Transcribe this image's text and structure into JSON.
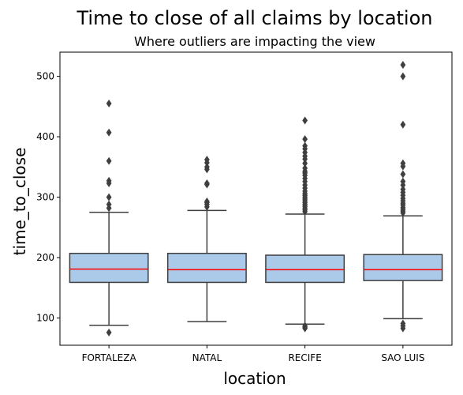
{
  "chart_data": {
    "type": "box",
    "title": "Time to close of all claims by location",
    "subtitle": "Where outliers are impacting the view",
    "xlabel": "location",
    "ylabel": "time_to_close",
    "ylim": [
      55,
      540
    ],
    "yticks": [
      100,
      200,
      300,
      400,
      500
    ],
    "grid": false,
    "colors": {
      "box_fill": "#abc9e8",
      "box_edge": "#3f3f3f",
      "median": "#ff0000"
    },
    "categories": [
      "FORTALEZA",
      "NATAL",
      "RECIFE",
      "SAO LUIS"
    ],
    "boxes": [
      {
        "category": "FORTALEZA",
        "whisker_low": 88,
        "q1": 159,
        "median": 181,
        "q3": 207,
        "whisker_high": 275,
        "outliers": [
          76,
          282,
          288,
          300,
          323,
          327,
          360,
          407,
          455
        ]
      },
      {
        "category": "NATAL",
        "whisker_low": 94,
        "q1": 159,
        "median": 180,
        "q3": 207,
        "whisker_high": 278,
        "outliers": [
          284,
          288,
          291,
          293,
          321,
          323,
          346,
          350,
          357,
          362
        ]
      },
      {
        "category": "RECIFE",
        "whisker_low": 90,
        "q1": 159,
        "median": 180,
        "q3": 204,
        "whisker_high": 272,
        "outliers": [
          83,
          85,
          87,
          276,
          279,
          282,
          285,
          288,
          291,
          294,
          297,
          300,
          303,
          306,
          310,
          315,
          320,
          326,
          331,
          336,
          340,
          343,
          348,
          356,
          363,
          368,
          374,
          380,
          385,
          396,
          427
        ]
      },
      {
        "category": "SAO LUIS",
        "whisker_low": 99,
        "q1": 162,
        "median": 180,
        "q3": 205,
        "whisker_high": 269,
        "outliers": [
          83,
          87,
          91,
          274,
          277,
          280,
          283,
          287,
          290,
          294,
          298,
          303,
          308,
          313,
          320,
          326,
          338,
          351,
          356,
          420,
          500,
          519
        ]
      }
    ]
  }
}
